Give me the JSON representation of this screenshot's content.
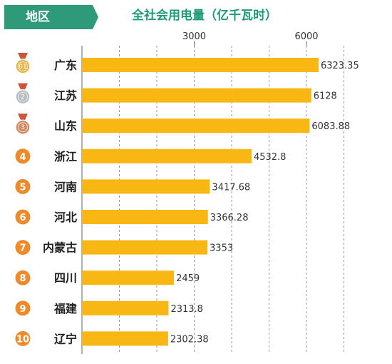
{
  "header": {
    "region_label": "地区",
    "title": "全社会用电量（亿千瓦时）"
  },
  "colors": {
    "header_green": "#2e9a79",
    "title_green": "#1f9a77",
    "bar": "#f8b712",
    "rank_orange": "#ee8a2a",
    "medal_gold": "#e4b64a",
    "medal_silver": "#b9bcc1",
    "medal_bronze": "#d58a66",
    "ribbon": "#c9553a"
  },
  "chart_data": {
    "type": "bar",
    "orientation": "horizontal",
    "categories": [
      "广东",
      "江苏",
      "山东",
      "浙江",
      "河南",
      "河北",
      "内蒙古",
      "四川",
      "福建",
      "辽宁"
    ],
    "ranks": [
      "01",
      "2",
      "3",
      "4",
      "5",
      "6",
      "7",
      "8",
      "9",
      "10"
    ],
    "values": [
      6323.35,
      6128,
      6083.88,
      4532.8,
      3417.68,
      3366.28,
      3353,
      2459,
      2313.8,
      2302.38
    ],
    "value_labels": [
      "6323.35",
      "6128",
      "6083.88",
      "4532.8",
      "3417.68",
      "3366.28",
      "3353",
      "2459",
      "2313.8",
      "2302.38"
    ],
    "x_ticks": [
      3000,
      6000
    ],
    "x_tick_labels": [
      "3000",
      "6000"
    ],
    "xlim": [
      0,
      7500
    ],
    "grid": true
  }
}
